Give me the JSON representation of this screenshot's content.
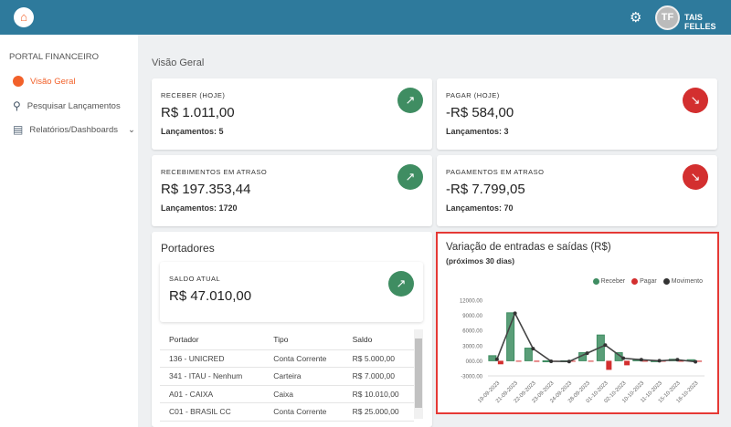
{
  "header": {
    "logo": "logo",
    "user_initials": "TF",
    "user_name": "TAIS FELLES",
    "settings_icon": "gear-icon"
  },
  "sidebar": {
    "title": "PORTAL FINANCEIRO",
    "items": [
      {
        "label": "Visão Geral",
        "icon": "pie-chart-icon",
        "active": true
      },
      {
        "label": "Pesquisar Lançamentos",
        "icon": "search-icon"
      },
      {
        "label": "Relatórios/Dashboards",
        "icon": "report-icon"
      }
    ]
  },
  "main": {
    "title": "Visão Geral",
    "kpis": [
      {
        "label": "RECEBER (HOJE)",
        "value": "R$ 1.011,00",
        "count": "Lançamentos: 5",
        "trend": "up"
      },
      {
        "label": "PAGAR (HOJE)",
        "value": "-R$ 584,00",
        "count": "Lançamentos: 3",
        "trend": "down"
      },
      {
        "label": "RECEBIMENTOS EM ATRASO",
        "value": "R$ 197.353,44",
        "count": "Lançamentos: 1720",
        "trend": "up"
      },
      {
        "label": "PAGAMENTOS EM ATRASO",
        "value": "-R$ 7.799,05",
        "count": "Lançamentos: 70",
        "trend": "down"
      }
    ],
    "portadores": {
      "title": "Portadores",
      "saldo_label": "SALDO ATUAL",
      "saldo_value": "R$ 47.010,00",
      "columns": [
        "Portador",
        "Tipo",
        "Saldo"
      ],
      "rows": [
        [
          "136 - UNICRED",
          "Conta Corrente",
          "R$ 5.000,00"
        ],
        [
          "341 - ITAU - Nenhum",
          "Carteira",
          "R$ 7.000,00"
        ],
        [
          "A01 - CAIXA",
          "Caixa",
          "R$ 10.010,00"
        ],
        [
          "C01 - BRASIL CC",
          "Conta Corrente",
          "R$ 25.000,00"
        ]
      ]
    }
  },
  "colors": {
    "header": "#2e7a9c",
    "accent": "#f2612a",
    "receber": "#3f8d62",
    "pagar": "#d32f2f",
    "movimento": "#333333"
  },
  "chart_data": {
    "type": "bar",
    "title": "Variação de entradas e saídas (R$)",
    "subtitle": "(próximos 30 dias)",
    "categories": [
      "19-09-2023",
      "21-09-2023",
      "22-09-2023",
      "23-09-2023",
      "24-09-2023",
      "28-09-2023",
      "01-10-2023",
      "02-10-2023",
      "10-10-2023",
      "11-10-2023",
      "15-10-2023",
      "16-10-2023"
    ],
    "ylim": [
      -3000,
      12000
    ],
    "yticks": [
      "12000.00",
      "9000.00",
      "6000.00",
      "3000.00",
      "000.00",
      "-3000.00"
    ],
    "legend_position": "top-right",
    "series": [
      {
        "name": "Receber",
        "type": "bar",
        "values": [
          1000,
          9500,
          2500,
          -200,
          0,
          1600,
          5100,
          1600,
          300,
          0,
          300,
          200
        ]
      },
      {
        "name": "Pagar",
        "type": "bar",
        "values": [
          -700,
          0,
          -200,
          0,
          0,
          0,
          -1800,
          -900,
          0,
          0,
          0,
          -200
        ]
      },
      {
        "name": "Movimento",
        "type": "line",
        "values": [
          300,
          9400,
          2400,
          -100,
          -150,
          1500,
          3100,
          500,
          200,
          0,
          200,
          -200
        ]
      }
    ]
  }
}
